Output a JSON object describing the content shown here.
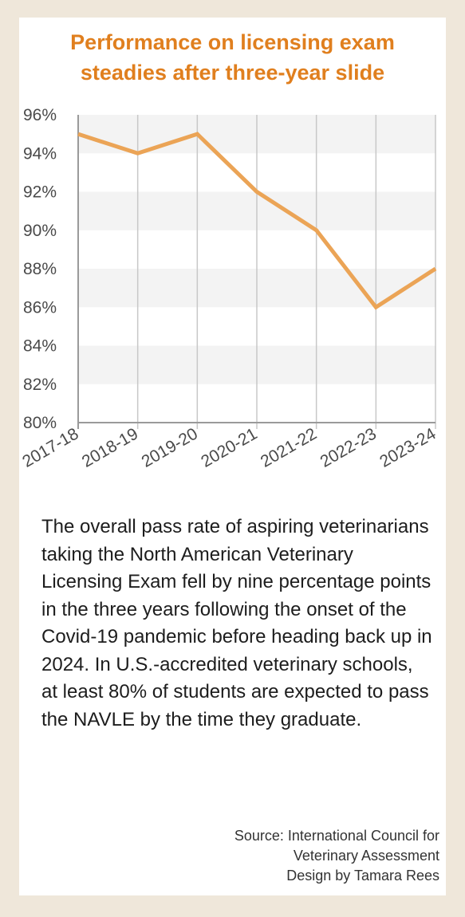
{
  "chart_data": {
    "type": "line",
    "title": "Performance on licensing exam\nsteadies after three-year slide",
    "categories": [
      "2017-18",
      "2018-19",
      "2019-20",
      "2020-21",
      "2021-22",
      "2022-23",
      "2023-24"
    ],
    "series": [
      {
        "values": [
          95,
          94,
          95,
          92,
          90,
          86,
          88
        ]
      }
    ],
    "yticks": [
      "80%",
      "82%",
      "84%",
      "86%",
      "88%",
      "90%",
      "92%",
      "94%",
      "96%"
    ],
    "ylim": [
      80,
      96
    ],
    "xlabel": "",
    "ylabel": "",
    "grid": "alternating horizontal bands, vertical lines at categories",
    "line_color": "#eba456",
    "band_color": "#f3f3f3"
  },
  "description": "The overall pass rate of aspiring veterinarians taking the North American Veterinary Licensing Exam fell by nine percentage points in the three years following the onset of the Covid-19 pandemic before heading back up in 2024. In U.S.-accredited veterinary schools, at least 80% of students are expected to pass the NAVLE by the time they graduate.",
  "credits": {
    "source": "Source: International Council for",
    "source_cont": "Veterinary Assessment",
    "design": "Design by Tamara Rees"
  },
  "colors": {
    "background": "#efe7da",
    "card": "#ffffff",
    "title": "#e07f1e"
  }
}
